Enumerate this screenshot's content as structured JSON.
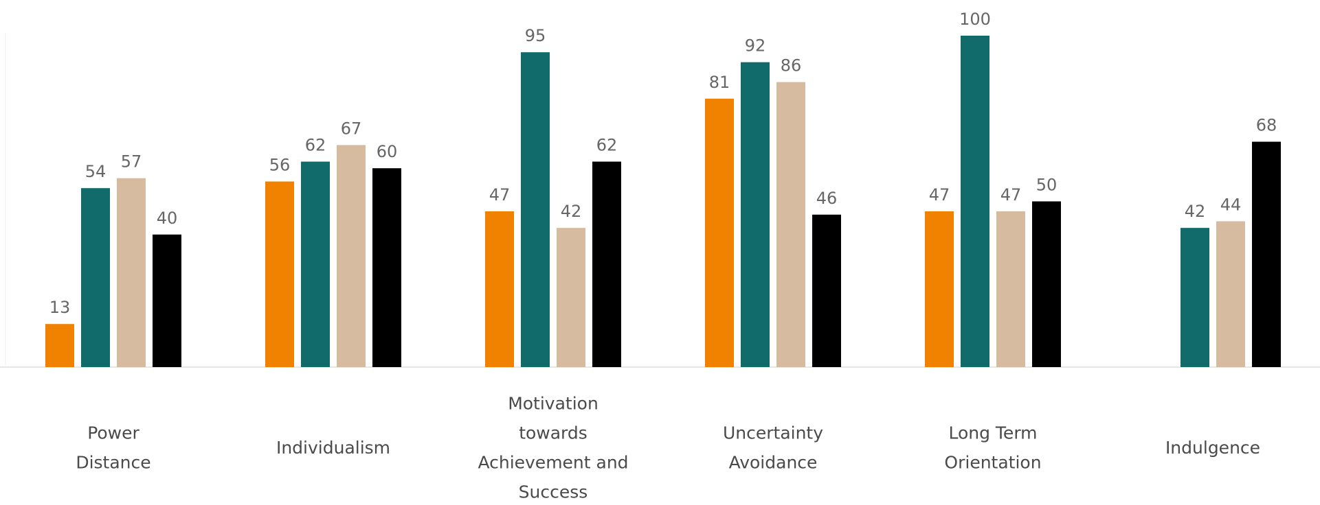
{
  "chart_data": {
    "type": "bar",
    "title": "",
    "xlabel": "",
    "ylabel": "",
    "ylim": [
      0,
      100
    ],
    "grid": false,
    "legend": "none",
    "categories": [
      [
        "Power",
        "Distance"
      ],
      [
        "Individualism"
      ],
      [
        "Motivation",
        "towards",
        "Achievement and",
        "Success"
      ],
      [
        "Uncertainty",
        "Avoidance"
      ],
      [
        "Long Term",
        "Orientation"
      ],
      [
        "Indulgence"
      ]
    ],
    "series": [
      {
        "color": "#F08200",
        "values": [
          13,
          56,
          47,
          81,
          47,
          null
        ]
      },
      {
        "color": "#126B6B",
        "values": [
          54,
          62,
          95,
          92,
          100,
          42
        ]
      },
      {
        "color": "#D6BBA1",
        "values": [
          57,
          67,
          42,
          86,
          47,
          44
        ]
      },
      {
        "color": "#000000",
        "values": [
          40,
          60,
          62,
          46,
          50,
          68
        ]
      }
    ]
  }
}
